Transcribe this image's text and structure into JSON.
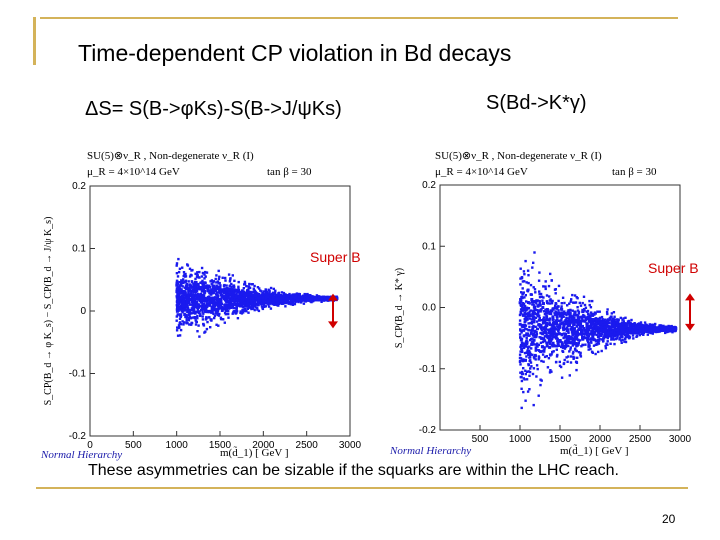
{
  "slide": {
    "title": "Time-dependent CP violation in Bd decays",
    "subtitle_left": "ΔS= S(B->φKs)-S(B->J/ψKs)",
    "subtitle_right": "S(Bd->K*γ)",
    "footer_note": "These asymmetries can be sizable if the squarks are within the LHC reach.",
    "page_number": "20",
    "accent_color": "#d4b35a",
    "point_color": "#1a1aee",
    "arrow_color": "#d00000"
  },
  "chart_data": [
    {
      "type": "scatter",
      "header_line1": "SU(5)⊗ν_R , Non-degenerate ν_R (I)",
      "header_line2": "μ_R = 4×10^14 GeV",
      "header_tan": "tan β = 30",
      "ylabel": "S_CP(B_d → φ K_s) − S_CP(B_d → J/ψ K_s)",
      "xlabel": "m(d̃_1) [ GeV ]",
      "footer_label": "Normal Hierarchy",
      "xlim": [
        0,
        3000
      ],
      "ylim": [
        -0.2,
        0.2
      ],
      "x_ticks": [
        "0",
        "500",
        "1000",
        "1500",
        "2000",
        "2500",
        "3000"
      ],
      "y_ticks": [
        "0.2",
        "0.1",
        "0",
        "-0.1",
        "-0.2"
      ],
      "annotation": "Super B",
      "super_b_range": [
        -0.015,
        0.015
      ],
      "envelope": {
        "x_start": 1000,
        "x_end": 2850,
        "y_center": 0.02,
        "max_half_width": 0.09,
        "tail_half_width": 0.005
      },
      "grid": false
    },
    {
      "type": "scatter",
      "header_line1": "SU(5)⊗ν_R , Non-degenerate ν_R (I)",
      "header_line2": "μ_R = 4×10^14 GeV",
      "header_tan": "tan β = 30",
      "ylabel": "S_CP(B_d → K* γ)",
      "xlabel": "m(d̃_1) [ GeV ]",
      "footer_label": "Normal Hierarchy",
      "xlim": [
        0,
        3000
      ],
      "ylim": [
        -0.2,
        0.2
      ],
      "x_ticks": [
        "500",
        "1000",
        "1500",
        "2000",
        "2500",
        "3000"
      ],
      "y_ticks": [
        "0.2",
        "0.1",
        "0.0",
        "-0.1",
        "-0.2"
      ],
      "annotation": "Super B",
      "super_b_range": [
        -0.025,
        0.01
      ],
      "envelope": {
        "x_start": 1000,
        "x_end": 2950,
        "y_center": -0.035,
        "max_half_width": 0.16,
        "tail_half_width": 0.006
      },
      "grid": false
    }
  ]
}
